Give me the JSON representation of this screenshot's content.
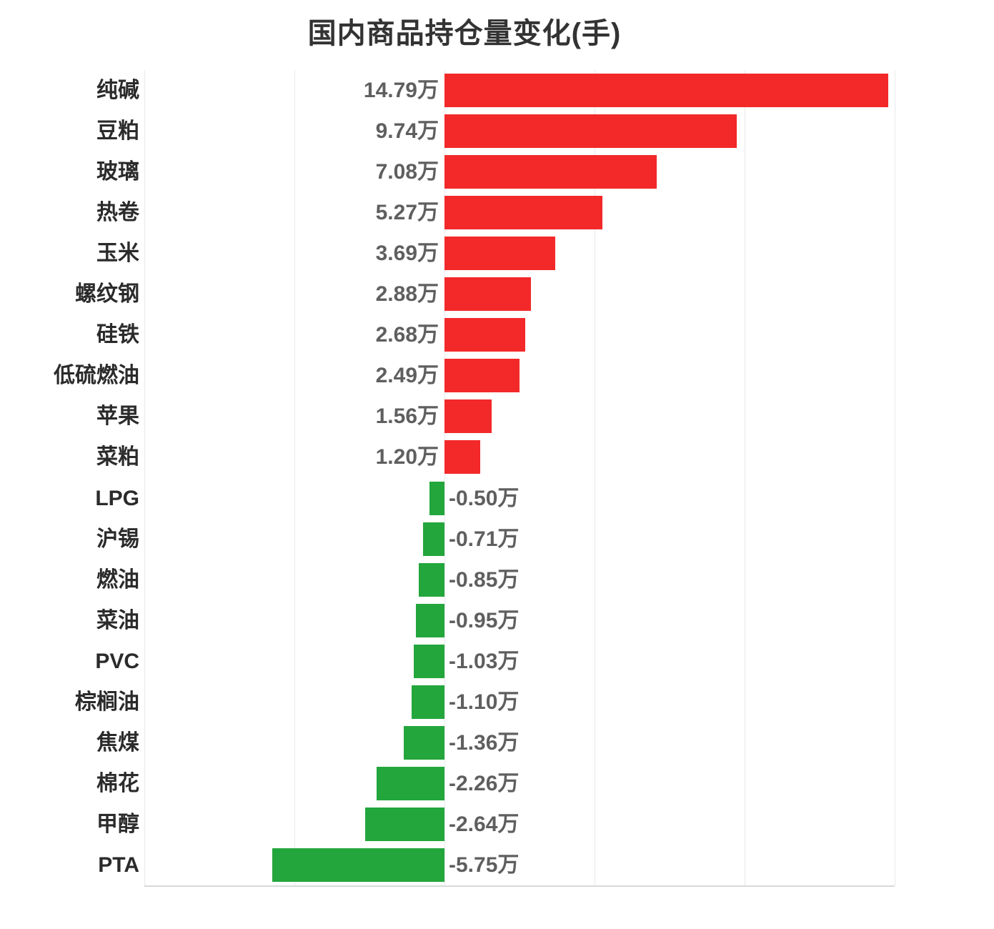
{
  "title": "国内商品持仓量变化(手)",
  "colors": {
    "positive_bar": "#f32929",
    "negative_bar": "#23a63c",
    "value_label": "#5f5f5f",
    "category_label": "#2b2b2b",
    "title_text": "#333333",
    "gridline": "#e9e9e9",
    "axis_line": "#d9d9d9"
  },
  "chart_data": {
    "type": "bar",
    "orientation": "horizontal",
    "title": "国内商品持仓量变化(手)",
    "value_unit": "万",
    "categories": [
      "纯碱",
      "豆粕",
      "玻璃",
      "热卷",
      "玉米",
      "螺纹钢",
      "硅铁",
      "低硫燃油",
      "苹果",
      "菜粕",
      "LPG",
      "沪锡",
      "燃油",
      "菜油",
      "PVC",
      "棕榈油",
      "焦煤",
      "棉花",
      "甲醇",
      "PTA"
    ],
    "values": [
      14.79,
      9.74,
      7.08,
      5.27,
      3.69,
      2.88,
      2.68,
      2.49,
      1.56,
      1.2,
      -0.5,
      -0.71,
      -0.85,
      -0.95,
      -1.03,
      -1.1,
      -1.36,
      -2.26,
      -2.64,
      -5.75
    ],
    "value_labels": [
      "14.79万",
      "9.74万",
      "7.08万",
      "5.27万",
      "3.69万",
      "2.88万",
      "2.68万",
      "2.49万",
      "1.56万",
      "1.20万",
      "-0.50万",
      "-0.71万",
      "-0.85万",
      "-0.95万",
      "-1.03万",
      "-1.10万",
      "-1.36万",
      "-2.26万",
      "-2.64万",
      "-5.75万"
    ],
    "xlim": [
      -10,
      15
    ],
    "grid_interval": 5,
    "gridlines": "vertical",
    "xlabel": "",
    "ylabel": "",
    "legend": null
  }
}
